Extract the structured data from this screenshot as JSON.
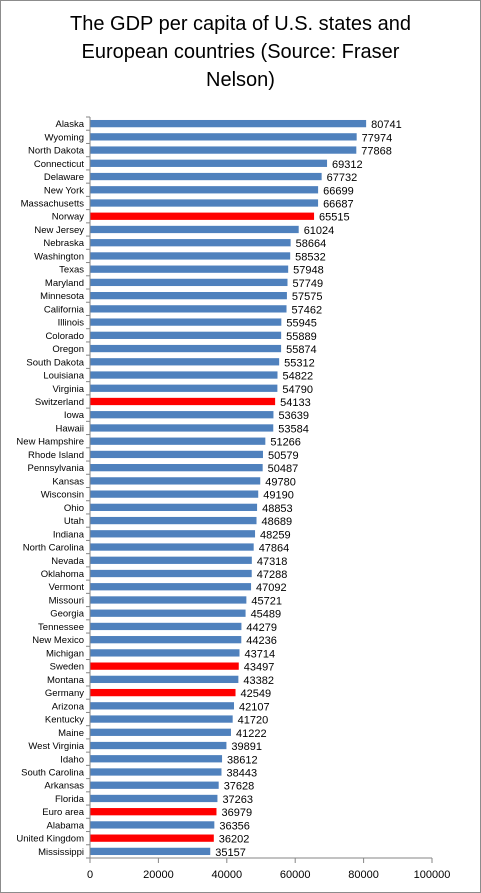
{
  "title_lines": [
    "The GDP per capita of U.S. states and",
    "European countries (Source: Fraser",
    "Nelson)"
  ],
  "colors": {
    "us_state": "#4f81bd",
    "european": "#ff0000",
    "axis": "#868686"
  },
  "chart_data": {
    "type": "bar",
    "orientation": "horizontal",
    "title": "The GDP per capita of U.S. states and European countries (Source: Fraser Nelson)",
    "xlabel": "",
    "ylabel": "",
    "xlim": [
      0,
      100000
    ],
    "x_ticks": [
      "0",
      "20000",
      "40000",
      "60000",
      "80000",
      "100000"
    ],
    "grid": false,
    "legend": "none",
    "categories": [
      "Alaska",
      "Wyoming",
      "North Dakota",
      "Connecticut",
      "Delaware",
      "New York",
      "Massachusetts",
      "Norway",
      "New Jersey",
      "Nebraska",
      "Washington",
      "Texas",
      "Maryland",
      "Minnesota",
      "California",
      "Illinois",
      "Colorado",
      "Oregon",
      "South Dakota",
      "Louisiana",
      "Virginia",
      "Switzerland",
      "Iowa",
      "Hawaii",
      "New Hampshire",
      "Rhode Island",
      "Pennsylvania",
      "Kansas",
      "Wisconsin",
      "Ohio",
      "Utah",
      "Indiana",
      "North Carolina",
      "Nevada",
      "Oklahoma",
      "Vermont",
      "Missouri",
      "Georgia",
      "Tennessee",
      "New Mexico",
      "Michigan",
      "Sweden",
      "Montana",
      "Germany",
      "Arizona",
      "Kentucky",
      "Maine",
      "West Virginia",
      "Idaho",
      "South Carolina",
      "Arkansas",
      "Florida",
      "Euro area",
      "Alabama",
      "United Kingdom",
      "Mississippi"
    ],
    "values": [
      80741,
      77974,
      77868,
      69312,
      67732,
      66699,
      66687,
      65515,
      61024,
      58664,
      58532,
      57948,
      57749,
      57575,
      57462,
      55945,
      55889,
      55874,
      55312,
      54822,
      54790,
      54133,
      53639,
      53584,
      51266,
      50579,
      50487,
      49780,
      49190,
      48853,
      48689,
      48259,
      47864,
      47318,
      47288,
      47092,
      45721,
      45489,
      44279,
      44236,
      43714,
      43497,
      43382,
      42549,
      42107,
      41720,
      41222,
      39891,
      38612,
      38443,
      37628,
      37263,
      36979,
      36356,
      36202,
      35157
    ],
    "highlighted": [
      "Norway",
      "Switzerland",
      "Sweden",
      "Germany",
      "Euro area",
      "United Kingdom"
    ]
  }
}
